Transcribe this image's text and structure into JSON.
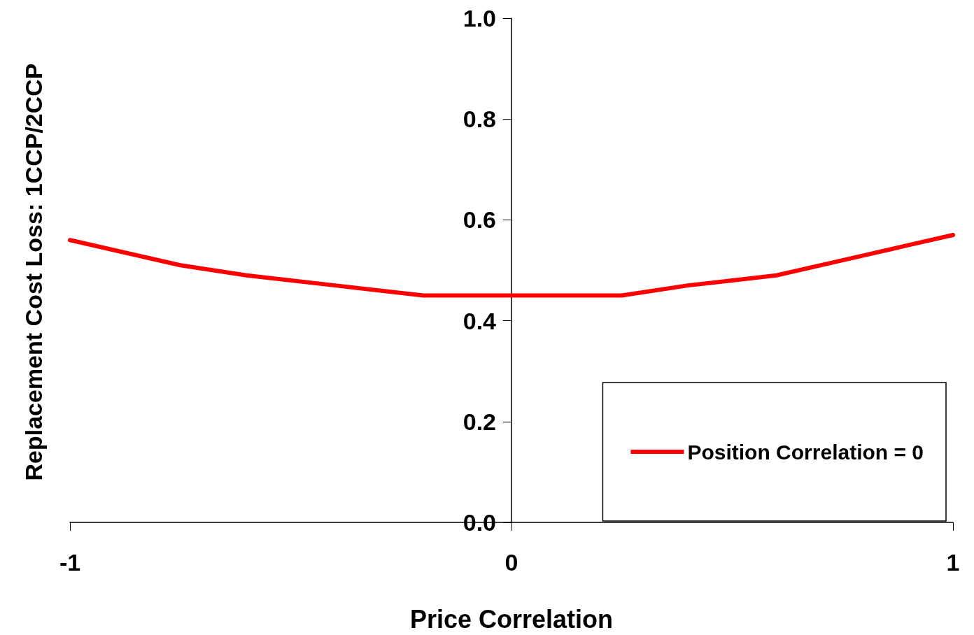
{
  "chart_data": {
    "type": "line",
    "xlabel": "Price Correlation",
    "ylabel": "Replacement Cost Loss: 1CCP/2CCP",
    "x": [
      -1,
      -0.75,
      -0.6,
      -0.4,
      -0.2,
      0,
      0.12,
      0.25,
      0.4,
      0.5,
      0.6,
      0.75,
      0.9,
      1
    ],
    "series": [
      {
        "name": "Position Correlation = 0",
        "color": "#ff0000",
        "values": [
          0.56,
          0.51,
          0.49,
          0.47,
          0.45,
          0.45,
          0.45,
          0.45,
          0.47,
          0.48,
          0.49,
          0.52,
          0.55,
          0.57
        ]
      }
    ],
    "xlim": [
      -1,
      1
    ],
    "xticks": [
      -1,
      0,
      1
    ],
    "ylim": [
      0,
      1
    ],
    "yticks": [
      {
        "value": 0,
        "label": "0.0"
      },
      0.2,
      0.4,
      0.6,
      0.8,
      {
        "value": 1,
        "label": "1.0"
      }
    ],
    "grid": false,
    "legend": "bottom right",
    "marker": "none",
    "line_style": "solid"
  }
}
